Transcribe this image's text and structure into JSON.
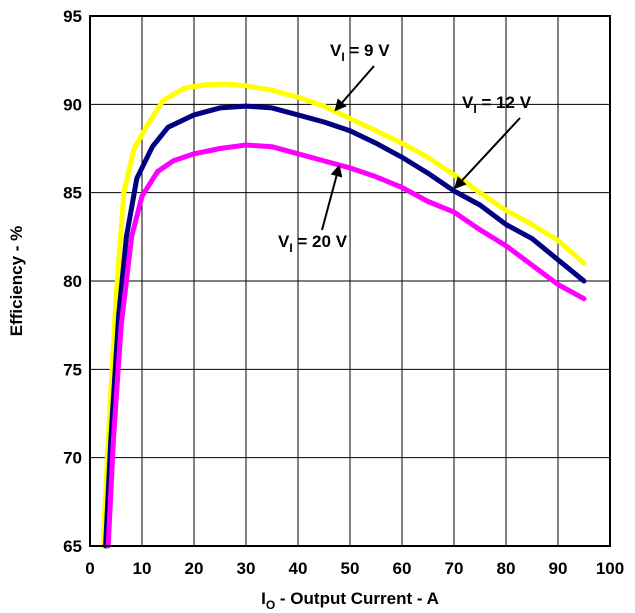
{
  "chart_data": {
    "type": "line",
    "xlabel": {
      "main": "I",
      "sub": "O",
      "rest": " - Output Current - A"
    },
    "ylabel": "Efficiency - %",
    "xlim": [
      0,
      100
    ],
    "ylim": [
      65,
      95
    ],
    "xticks": [
      0,
      10,
      20,
      30,
      40,
      50,
      60,
      70,
      80,
      90,
      100
    ],
    "yticks": [
      65,
      70,
      75,
      80,
      85,
      90,
      95
    ],
    "grid": true,
    "series": [
      {
        "name": "VI = 9 V",
        "color": "#ffff00",
        "points": [
          [
            2.5,
            65
          ],
          [
            3.5,
            71
          ],
          [
            5,
            79
          ],
          [
            6.5,
            85
          ],
          [
            8.5,
            87.5
          ],
          [
            11,
            88.8
          ],
          [
            14,
            90.2
          ],
          [
            18,
            90.9
          ],
          [
            22,
            91.1
          ],
          [
            26,
            91.15
          ],
          [
            30,
            91.05
          ],
          [
            35,
            90.8
          ],
          [
            40,
            90.4
          ],
          [
            45,
            89.9
          ],
          [
            50,
            89.2
          ],
          [
            55,
            88.5
          ],
          [
            60,
            87.8
          ],
          [
            65,
            87.0
          ],
          [
            70,
            86.0
          ],
          [
            75,
            85.0
          ],
          [
            80,
            84.0
          ],
          [
            85,
            83.2
          ],
          [
            90,
            82.3
          ],
          [
            95,
            81.0
          ]
        ]
      },
      {
        "name": "VI = 12 V",
        "color": "#000080",
        "points": [
          [
            3,
            65
          ],
          [
            4,
            71
          ],
          [
            5.5,
            78
          ],
          [
            7,
            82.5
          ],
          [
            9,
            85.8
          ],
          [
            12,
            87.6
          ],
          [
            15,
            88.7
          ],
          [
            20,
            89.4
          ],
          [
            25,
            89.8
          ],
          [
            30,
            89.9
          ],
          [
            35,
            89.8
          ],
          [
            40,
            89.4
          ],
          [
            45,
            89.0
          ],
          [
            50,
            88.5
          ],
          [
            55,
            87.8
          ],
          [
            60,
            87.0
          ],
          [
            65,
            86.1
          ],
          [
            70,
            85.1
          ],
          [
            75,
            84.3
          ],
          [
            80,
            83.2
          ],
          [
            85,
            82.4
          ],
          [
            90,
            81.2
          ],
          [
            95,
            80.0
          ]
        ]
      },
      {
        "name": "VI = 20 V",
        "color": "#ff00ff",
        "points": [
          [
            3.5,
            65
          ],
          [
            4.5,
            71
          ],
          [
            6,
            77.5
          ],
          [
            8,
            82.5
          ],
          [
            10,
            84.8
          ],
          [
            13,
            86.2
          ],
          [
            16,
            86.8
          ],
          [
            20,
            87.2
          ],
          [
            25,
            87.5
          ],
          [
            30,
            87.7
          ],
          [
            35,
            87.6
          ],
          [
            40,
            87.2
          ],
          [
            45,
            86.8
          ],
          [
            50,
            86.4
          ],
          [
            55,
            85.9
          ],
          [
            60,
            85.3
          ],
          [
            65,
            84.5
          ],
          [
            70,
            83.9
          ],
          [
            75,
            82.9
          ],
          [
            80,
            82.0
          ],
          [
            85,
            80.9
          ],
          [
            90,
            79.8
          ],
          [
            95,
            79.0
          ]
        ]
      }
    ],
    "annotations": [
      {
        "main": "V",
        "sub": "I",
        "rest": " = 9 V",
        "arrow_to": [
          47,
          89.6
        ]
      },
      {
        "main": "V",
        "sub": "I",
        "rest": " = 12 V",
        "arrow_to": [
          70,
          85.2
        ]
      },
      {
        "main": "V",
        "sub": "I",
        "rest": " = 20 V",
        "arrow_to": [
          48,
          86.6
        ]
      }
    ]
  }
}
